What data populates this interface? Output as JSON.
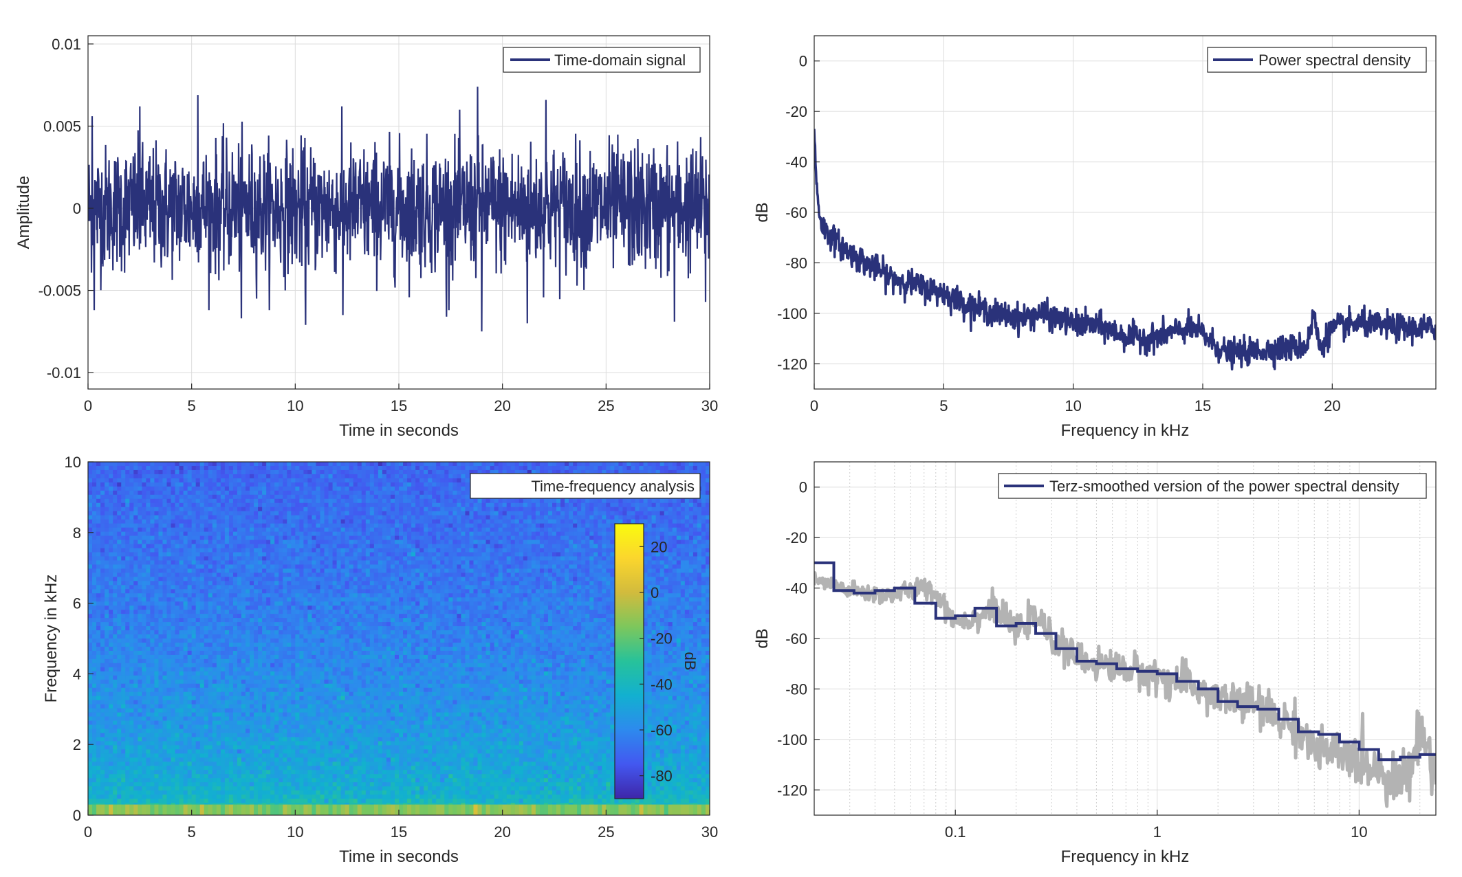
{
  "colors": {
    "signal": "#2a327a",
    "smooth_raw": "#b3b3b3",
    "grid": "#dcdcdc",
    "axis": "#262626",
    "background": "#ffffff"
  },
  "chart_data": [
    {
      "id": "time_signal",
      "type": "line",
      "title": "",
      "xlabel": "Time in seconds",
      "ylabel": "Amplitude",
      "xlim": [
        0,
        30
      ],
      "ylim": [
        -0.011,
        0.0105
      ],
      "xticks": [
        0,
        5,
        10,
        15,
        20,
        25,
        30
      ],
      "xtick_labels": [
        "0",
        "5",
        "10",
        "15",
        "20",
        "25",
        "30"
      ],
      "yticks": [
        0.01,
        0.005,
        0,
        -0.005,
        -0.01
      ],
      "ytick_labels": [
        "0.01",
        "0.005",
        "0",
        "-0.005",
        "-0.01"
      ],
      "grid": true,
      "legend_position": "top-right",
      "series": [
        {
          "name": "Time-domain signal",
          "description_of_envelope": "dense noise, typically within ±0.004, peaks up to about ±0.0075",
          "envelope_peaks": [
            {
              "x": 0.2,
              "y": 0.0056
            },
            {
              "x": 0.3,
              "y": -0.0062
            },
            {
              "x": 2.5,
              "y": 0.0062
            },
            {
              "x": 5.3,
              "y": 0.0069
            },
            {
              "x": 7.4,
              "y": -0.0067
            },
            {
              "x": 10.5,
              "y": -0.0071
            },
            {
              "x": 12.3,
              "y": -0.0065
            },
            {
              "x": 17.3,
              "y": -0.0066
            },
            {
              "x": 18.8,
              "y": 0.0074
            },
            {
              "x": 19.0,
              "y": -0.0075
            },
            {
              "x": 21.2,
              "y": -0.007
            },
            {
              "x": 22.1,
              "y": 0.0066
            },
            {
              "x": 28.3,
              "y": -0.0069
            },
            {
              "x": 29.8,
              "y": -0.0057
            }
          ]
        }
      ]
    },
    {
      "id": "psd",
      "type": "line",
      "title": "",
      "xlabel": "Frequency in kHz",
      "ylabel": "dB",
      "xlim": [
        0,
        24
      ],
      "ylim": [
        -130,
        10
      ],
      "xticks": [
        0,
        5,
        10,
        15,
        20
      ],
      "xtick_labels": [
        "0",
        "5",
        "10",
        "15",
        "20"
      ],
      "yticks": [
        0,
        -20,
        -40,
        -60,
        -80,
        -100,
        -120
      ],
      "ytick_labels": [
        "0",
        "-20",
        "-40",
        "-60",
        "-80",
        "-100",
        "-120"
      ],
      "grid": true,
      "legend_position": "top-right",
      "series": [
        {
          "name": "Power spectral density",
          "x": [
            0,
            0.05,
            0.1,
            0.2,
            0.3,
            0.5,
            1,
            1.5,
            2,
            2.5,
            3,
            4,
            5,
            6,
            7,
            8,
            8.8,
            9,
            10,
            11,
            12,
            13,
            14,
            14.5,
            15,
            15.5,
            16,
            17,
            18,
            19,
            19.3,
            19.5,
            20,
            21,
            22,
            23,
            24
          ],
          "y": [
            -28,
            -40,
            -50,
            -60,
            -65,
            -68,
            -73,
            -77,
            -80,
            -83,
            -86,
            -89,
            -92,
            -97,
            -100,
            -102,
            -100,
            -101,
            -104,
            -105,
            -109,
            -110,
            -107,
            -106,
            -108,
            -113,
            -116,
            -115,
            -114,
            -113,
            -100,
            -114,
            -106,
            -104,
            -105,
            -106,
            -106
          ]
        }
      ]
    },
    {
      "id": "spectrogram",
      "type": "heatmap",
      "title": "",
      "xlabel": "Time in seconds",
      "ylabel": "Frequency in kHz",
      "xlim": [
        0,
        30
      ],
      "ylim": [
        0,
        10
      ],
      "xticks": [
        0,
        5,
        10,
        15,
        20,
        25,
        30
      ],
      "xtick_labels": [
        "0",
        "5",
        "10",
        "15",
        "20",
        "25",
        "30"
      ],
      "yticks": [
        0,
        2,
        4,
        6,
        8,
        10
      ],
      "ytick_labels": [
        "0",
        "2",
        "4",
        "6",
        "8",
        "10"
      ],
      "legend_position": "top-right",
      "legend_label": "Time-frequency analysis",
      "colorbar": {
        "label": "dB",
        "range": [
          -90,
          30
        ],
        "ticks": [
          20,
          0,
          -20,
          -40,
          -60,
          -80
        ],
        "tick_labels": [
          "20",
          "0",
          "-20",
          "-40",
          "-60",
          "-80"
        ],
        "colormap": [
          "#3e26a8",
          "#4358f0",
          "#2d8aee",
          "#12b0d0",
          "#27c29a",
          "#7dc75c",
          "#d2bb3d",
          "#fbd62d",
          "#f9fb0e"
        ]
      },
      "level_profile": {
        "freq_khz": [
          0,
          0.1,
          0.3,
          0.6,
          1,
          2,
          3,
          4,
          5,
          6,
          7,
          8,
          9,
          10
        ],
        "level_db": [
          -18,
          -30,
          -38,
          -44,
          -47,
          -52,
          -56,
          -59,
          -62,
          -64,
          -66,
          -68,
          -69,
          -71
        ]
      }
    },
    {
      "id": "terz_psd",
      "type": "line",
      "title": "",
      "xlabel": "Frequency in kHz",
      "ylabel": "dB",
      "xscale": "log",
      "xlim": [
        0.02,
        24
      ],
      "ylim": [
        -130,
        10
      ],
      "xticks": [
        0.1,
        1,
        10
      ],
      "xtick_labels": [
        "0.1",
        "1",
        "10"
      ],
      "yticks": [
        0,
        -20,
        -40,
        -60,
        -80,
        -100,
        -120
      ],
      "ytick_labels": [
        "0",
        "-20",
        "-40",
        "-60",
        "-80",
        "-100",
        "-120"
      ],
      "grid": true,
      "legend_position": "top-right",
      "series": [
        {
          "name": "Terz-smoothed version of the power spectral density",
          "x": [
            0.02,
            0.025,
            0.025,
            0.0315,
            0.0315,
            0.04,
            0.04,
            0.05,
            0.05,
            0.063,
            0.063,
            0.08,
            0.08,
            0.1,
            0.1,
            0.125,
            0.125,
            0.16,
            0.16,
            0.2,
            0.2,
            0.25,
            0.25,
            0.315,
            0.315,
            0.4,
            0.4,
            0.5,
            0.5,
            0.63,
            0.63,
            0.8,
            0.8,
            1.0,
            1.0,
            1.25,
            1.25,
            1.6,
            1.6,
            2.0,
            2.0,
            2.5,
            2.5,
            3.15,
            3.15,
            4.0,
            4.0,
            5.0,
            5.0,
            6.3,
            6.3,
            8.0,
            8.0,
            10.0,
            10.0,
            12.5,
            12.5,
            16.0,
            16.0,
            20.0,
            20.0,
            24
          ],
          "y": [
            -30,
            -30,
            -41,
            -41,
            -42,
            -42,
            -41,
            -41,
            -40,
            -40,
            -46,
            -46,
            -52,
            -52,
            -51,
            -51,
            -48,
            -48,
            -55,
            -55,
            -54,
            -54,
            -58,
            -58,
            -64,
            -64,
            -69,
            -69,
            -70,
            -70,
            -72,
            -72,
            -73,
            -73,
            -74,
            -74,
            -77,
            -77,
            -80,
            -80,
            -85,
            -85,
            -87,
            -87,
            -88,
            -88,
            -92,
            -92,
            -97,
            -97,
            -98,
            -98,
            -101,
            -101,
            -104,
            -104,
            -108,
            -108,
            -107,
            -107,
            -106,
            -106
          ]
        },
        {
          "name": "",
          "x": [
            0.02,
            0.03,
            0.045,
            0.06,
            0.075,
            0.1,
            0.13,
            0.15,
            0.2,
            0.25,
            0.3,
            0.4,
            0.5,
            0.7,
            1.0,
            1.5,
            2,
            3,
            4,
            5,
            6,
            8,
            10,
            13,
            15,
            18,
            20,
            24
          ],
          "y": [
            -37,
            -41,
            -43,
            -41,
            -40,
            -53,
            -52,
            -47,
            -57,
            -51,
            -60,
            -68,
            -70,
            -72,
            -75,
            -79,
            -84,
            -86,
            -92,
            -95,
            -104,
            -106,
            -109,
            -112,
            -117,
            -112,
            -95,
            -113
          ]
        }
      ]
    }
  ]
}
